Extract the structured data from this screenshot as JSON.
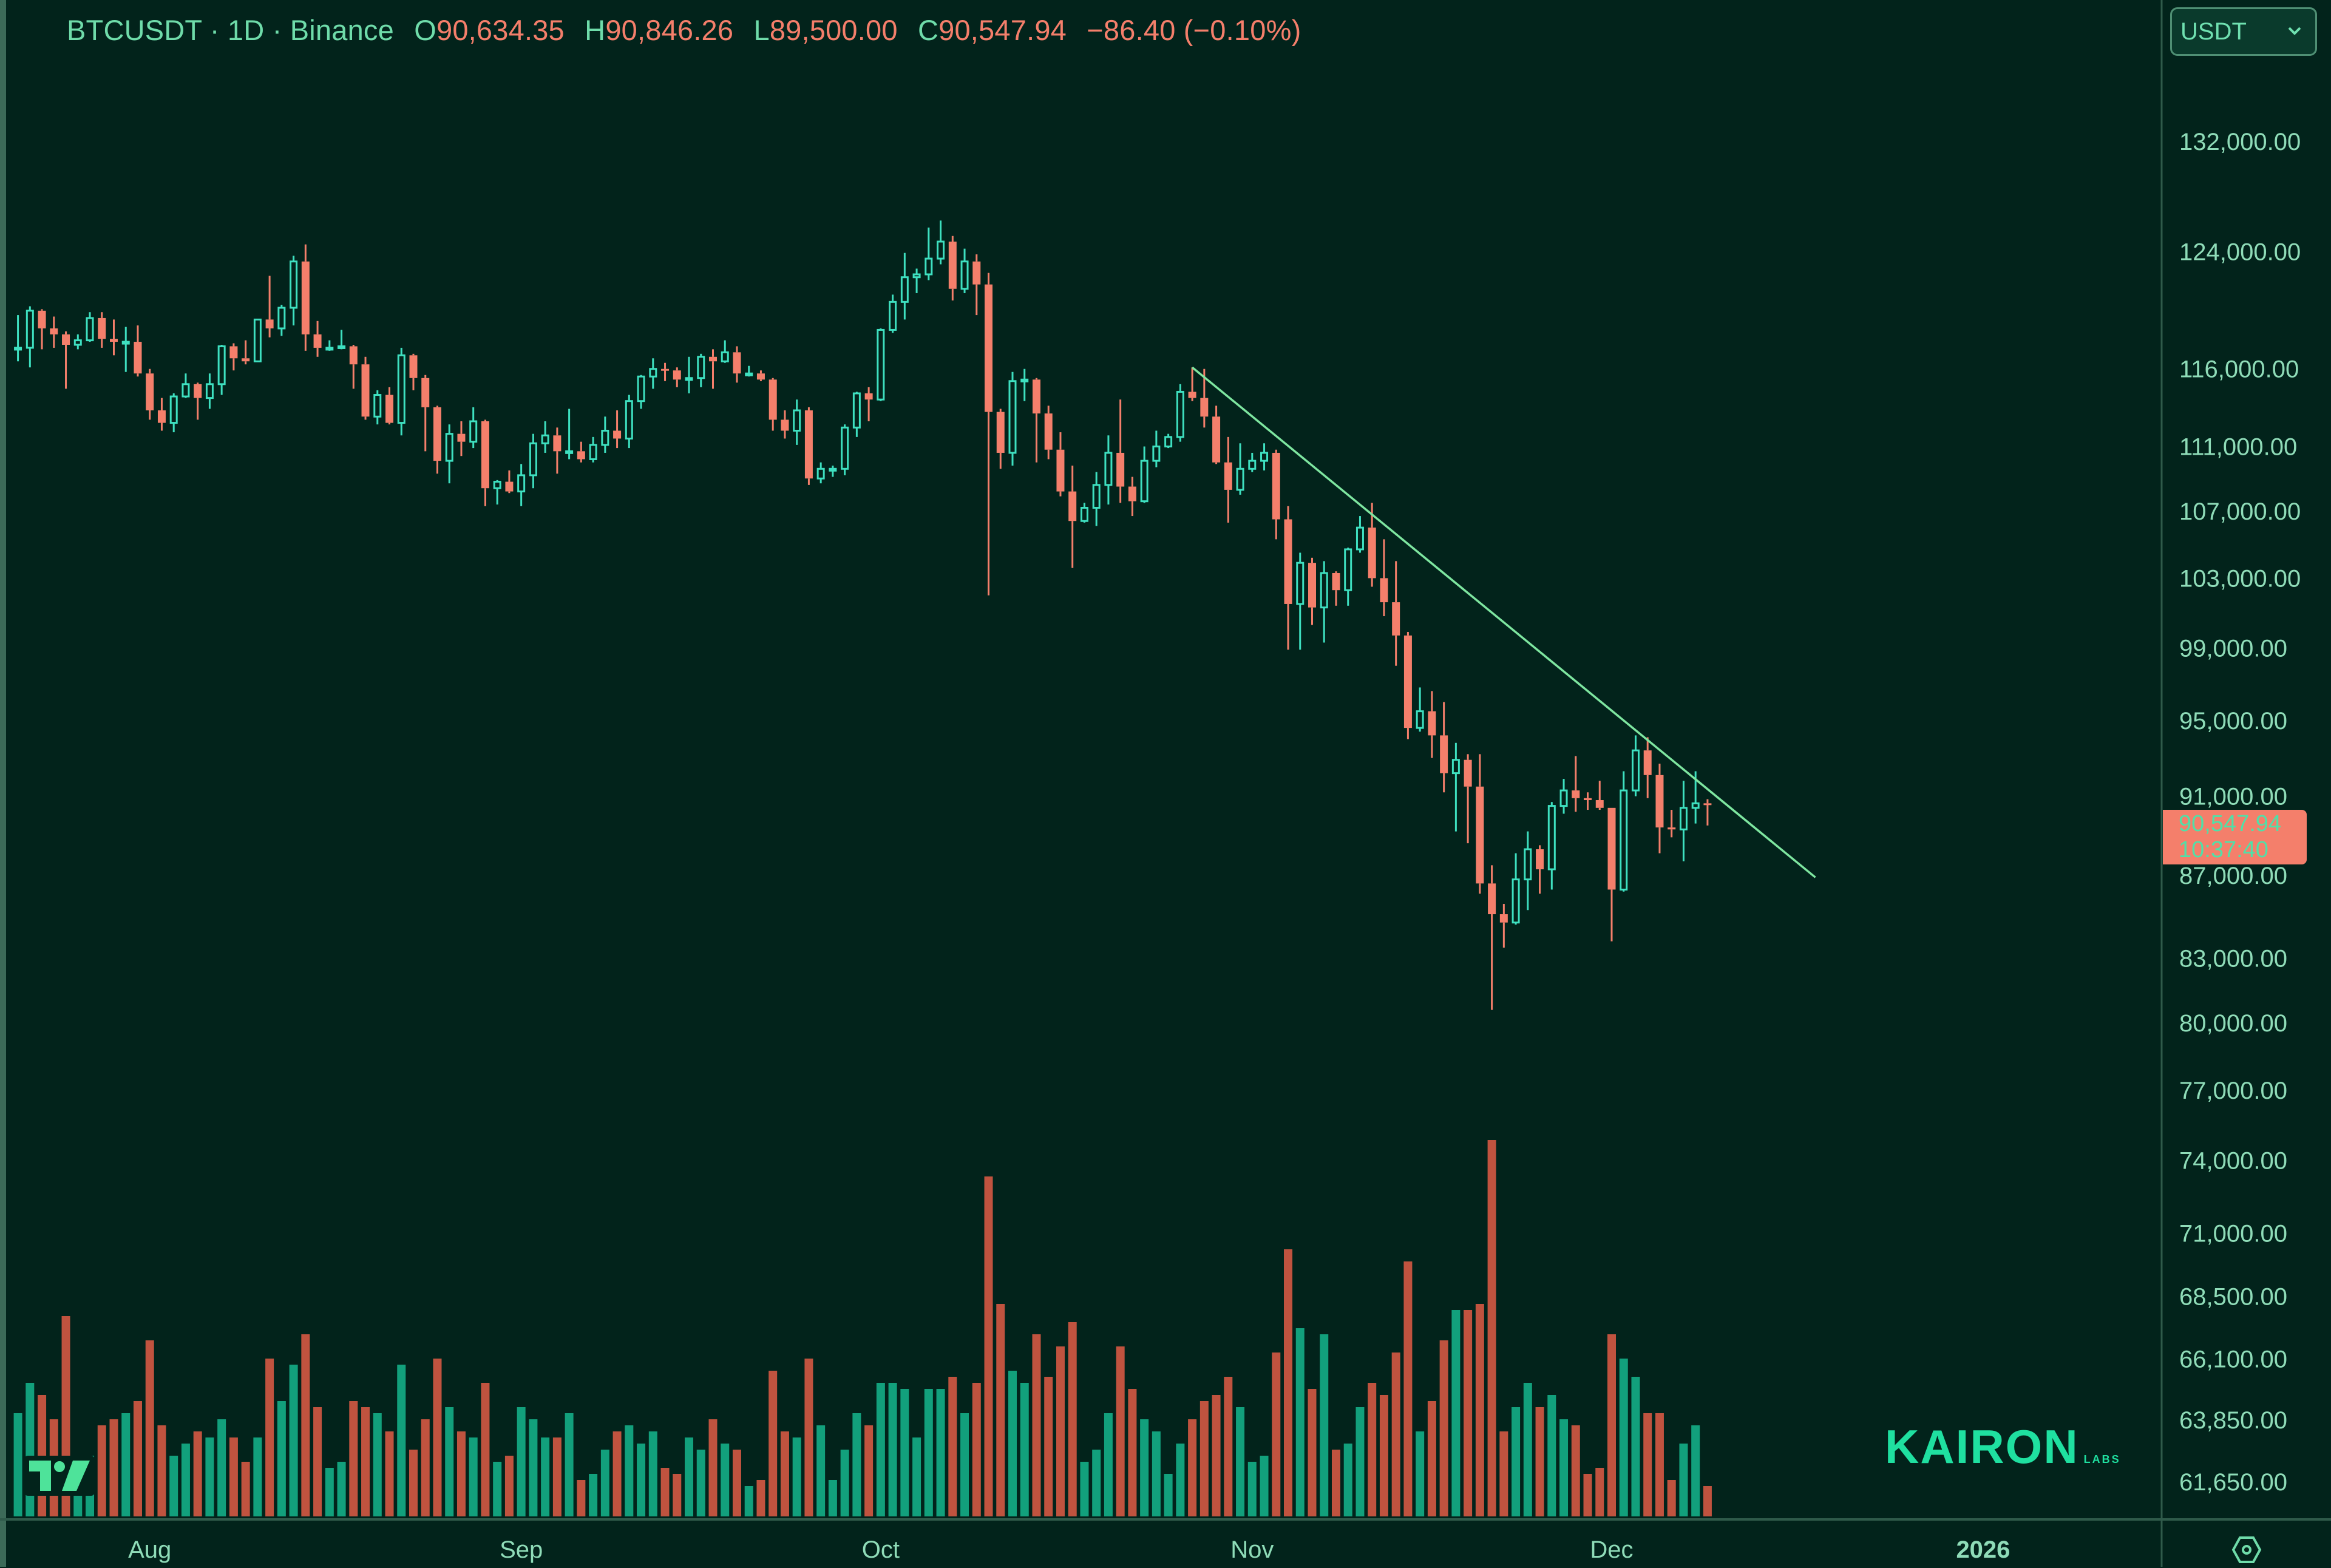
{
  "header": {
    "symbol_line": "BTCUSDT · 1D · Binance",
    "open_label": "O",
    "open": "90,634.35",
    "high_label": "H",
    "high": "90,846.26",
    "low_label": "L",
    "low": "89,500.00",
    "close_label": "C",
    "close": "90,547.94",
    "change": "−86.40 (−0.10%)"
  },
  "currency_select": {
    "value": "USDT",
    "icon": "chevron-down-icon"
  },
  "last_price": {
    "price": "90,547.94",
    "countdown": "10:37:40"
  },
  "logo": {
    "name": "KAIRON",
    "suffix": "LABS"
  },
  "watermark": "TV",
  "settings_icon": "gear-hexagon-icon",
  "colors": {
    "background": "#02231b",
    "up": "#3ee0c0",
    "down": "#f47f6b",
    "volume_up": "#12a07c",
    "volume_down": "#c0533f",
    "trendline": "#7ee6a0",
    "axis_text": "#8fdcb8"
  },
  "chart_data": {
    "type": "candlestick",
    "y_scale": "log",
    "ylim": [
      60500,
      140000
    ],
    "price_ticks": [
      "132,000.00",
      "124,000.00",
      "116,000.00",
      "111,000.00",
      "107,000.00",
      "103,000.00",
      "99,000.00",
      "95,000.00",
      "91,000.00",
      "87,000.00",
      "83,000.00",
      "80,000.00",
      "77,000.00",
      "74,000.00",
      "71,000.00",
      "68,500.00",
      "66,100.00",
      "63,850.00",
      "61,650.00"
    ],
    "time_ticks": [
      {
        "label": "Aug",
        "date": "2025-08-01"
      },
      {
        "label": "Sep",
        "date": "2025-09-01"
      },
      {
        "label": "Oct",
        "date": "2025-10-01"
      },
      {
        "label": "Nov",
        "date": "2025-11-01"
      },
      {
        "label": "Dec",
        "date": "2025-12-01"
      },
      {
        "label": "2026",
        "date": "2026-01-01",
        "bold": true
      }
    ],
    "trendline": [
      [
        "2025-10-27",
        116100
      ],
      [
        "2025-12-18",
        86900
      ]
    ],
    "columns": [
      "date",
      "open",
      "high",
      "low",
      "close",
      "volume"
    ],
    "candles": [
      [
        "2025-07-21",
        117300,
        119600,
        116500,
        117400,
        17000
      ],
      [
        "2025-07-22",
        117400,
        120200,
        116100,
        119900,
        22000
      ],
      [
        "2025-07-23",
        119900,
        120000,
        117300,
        118700,
        20000
      ],
      [
        "2025-07-24",
        118700,
        119500,
        117400,
        118300,
        16000
      ],
      [
        "2025-07-25",
        118300,
        118500,
        114700,
        117600,
        33000
      ],
      [
        "2025-07-26",
        117600,
        118300,
        117300,
        117900,
        9000
      ],
      [
        "2025-07-27",
        117900,
        119800,
        117800,
        119400,
        10000
      ],
      [
        "2025-07-28",
        119400,
        119800,
        117400,
        118000,
        15000
      ],
      [
        "2025-07-29",
        118000,
        119300,
        116900,
        117800,
        16000
      ],
      [
        "2025-07-30",
        117800,
        118800,
        115800,
        117800,
        17000
      ],
      [
        "2025-07-31",
        117800,
        118900,
        115500,
        115700,
        19000
      ],
      [
        "2025-08-01",
        115700,
        116000,
        112700,
        113300,
        29000
      ],
      [
        "2025-08-02",
        113300,
        114100,
        112000,
        112500,
        15000
      ],
      [
        "2025-08-03",
        112500,
        114400,
        111900,
        114200,
        10000
      ],
      [
        "2025-08-04",
        114200,
        115700,
        114100,
        115000,
        12000
      ],
      [
        "2025-08-05",
        115000,
        115100,
        112700,
        114100,
        14000
      ],
      [
        "2025-08-06",
        114100,
        115700,
        113400,
        115000,
        13000
      ],
      [
        "2025-08-07",
        115000,
        117600,
        114300,
        117500,
        16000
      ],
      [
        "2025-08-08",
        117500,
        117700,
        115900,
        116700,
        13000
      ],
      [
        "2025-08-09",
        116700,
        117900,
        116300,
        116500,
        9000
      ],
      [
        "2025-08-10",
        116500,
        119300,
        116500,
        119300,
        13000
      ],
      [
        "2025-08-11",
        119300,
        122300,
        118100,
        118700,
        26000
      ],
      [
        "2025-08-12",
        118700,
        120300,
        118200,
        120100,
        19000
      ],
      [
        "2025-08-13",
        120100,
        123700,
        118900,
        123300,
        25000
      ],
      [
        "2025-08-14",
        123300,
        124500,
        117200,
        118300,
        30000
      ],
      [
        "2025-08-15",
        118300,
        119200,
        116800,
        117400,
        18000
      ],
      [
        "2025-08-16",
        117400,
        117900,
        117200,
        117400,
        8000
      ],
      [
        "2025-08-17",
        117400,
        118600,
        117300,
        117500,
        9000
      ],
      [
        "2025-08-18",
        117500,
        117600,
        114700,
        116300,
        19000
      ],
      [
        "2025-08-19",
        116300,
        116800,
        112700,
        112900,
        18000
      ],
      [
        "2025-08-20",
        112900,
        114600,
        112400,
        114300,
        17000
      ],
      [
        "2025-08-21",
        114300,
        114800,
        112400,
        112500,
        14000
      ],
      [
        "2025-08-22",
        112500,
        117400,
        111700,
        116900,
        25000
      ],
      [
        "2025-08-23",
        116900,
        117000,
        114600,
        115400,
        11000
      ],
      [
        "2025-08-24",
        115400,
        115600,
        110700,
        113500,
        16000
      ],
      [
        "2025-08-25",
        113500,
        113600,
        109300,
        110100,
        26000
      ],
      [
        "2025-08-26",
        110100,
        112400,
        108700,
        111800,
        18000
      ],
      [
        "2025-08-27",
        111800,
        112600,
        110400,
        111300,
        14000
      ],
      [
        "2025-08-28",
        111300,
        113500,
        110900,
        112600,
        13000
      ],
      [
        "2025-08-29",
        112600,
        112700,
        107300,
        108400,
        22000
      ],
      [
        "2025-08-30",
        108400,
        108900,
        107400,
        108800,
        9000
      ],
      [
        "2025-08-31",
        108800,
        109500,
        108100,
        108200,
        10000
      ],
      [
        "2025-09-01",
        108200,
        109900,
        107300,
        109200,
        18000
      ],
      [
        "2025-09-02",
        109200,
        111800,
        108400,
        111200,
        16000
      ],
      [
        "2025-09-03",
        111200,
        112600,
        110600,
        111700,
        13000
      ],
      [
        "2025-09-04",
        111700,
        112200,
        109300,
        110700,
        13000
      ],
      [
        "2025-09-05",
        110700,
        113400,
        110200,
        110700,
        17000
      ],
      [
        "2025-09-06",
        110700,
        111300,
        110000,
        110200,
        6000
      ],
      [
        "2025-09-07",
        110200,
        111600,
        110000,
        111100,
        7000
      ],
      [
        "2025-09-08",
        111100,
        112900,
        110600,
        112000,
        11000
      ],
      [
        "2025-09-09",
        112000,
        113300,
        110900,
        111500,
        14000
      ],
      [
        "2025-09-10",
        111500,
        114300,
        110900,
        113900,
        15000
      ],
      [
        "2025-09-11",
        113900,
        115600,
        113400,
        115500,
        12000
      ],
      [
        "2025-09-12",
        115500,
        116700,
        114700,
        116000,
        14000
      ],
      [
        "2025-09-13",
        116000,
        116400,
        115200,
        115900,
        8000
      ],
      [
        "2025-09-14",
        115900,
        116100,
        114800,
        115300,
        7000
      ],
      [
        "2025-09-15",
        115300,
        116800,
        114400,
        115400,
        13000
      ],
      [
        "2025-09-16",
        115400,
        117000,
        114800,
        116800,
        11000
      ],
      [
        "2025-09-17",
        116800,
        117300,
        114700,
        116500,
        16000
      ],
      [
        "2025-09-18",
        116500,
        117900,
        116400,
        117100,
        12000
      ],
      [
        "2025-09-19",
        117100,
        117500,
        115100,
        115700,
        11000
      ],
      [
        "2025-09-20",
        115700,
        116200,
        115500,
        115700,
        5000
      ],
      [
        "2025-09-21",
        115700,
        115900,
        115200,
        115300,
        6000
      ],
      [
        "2025-09-22",
        115300,
        115400,
        112000,
        112700,
        24000
      ],
      [
        "2025-09-23",
        112700,
        113300,
        111500,
        112000,
        14000
      ],
      [
        "2025-09-24",
        112000,
        114000,
        111100,
        113300,
        13000
      ],
      [
        "2025-09-25",
        113300,
        113500,
        108600,
        109000,
        26000
      ],
      [
        "2025-09-26",
        109000,
        110000,
        108700,
        109600,
        15000
      ],
      [
        "2025-09-27",
        109600,
        109800,
        109100,
        109600,
        6000
      ],
      [
        "2025-09-28",
        109600,
        112400,
        109200,
        112200,
        11000
      ],
      [
        "2025-09-29",
        112200,
        114500,
        111600,
        114400,
        17000
      ],
      [
        "2025-09-30",
        114400,
        114800,
        112600,
        114000,
        15000
      ],
      [
        "2025-10-01",
        114000,
        118700,
        113900,
        118600,
        22000
      ],
      [
        "2025-10-02",
        118600,
        121000,
        118400,
        120500,
        22000
      ],
      [
        "2025-10-03",
        120500,
        123900,
        119300,
        122200,
        21000
      ],
      [
        "2025-10-04",
        122200,
        122800,
        121100,
        122400,
        13000
      ],
      [
        "2025-10-05",
        122400,
        125700,
        122000,
        123500,
        21000
      ],
      [
        "2025-10-06",
        123500,
        126200,
        123100,
        124700,
        21000
      ],
      [
        "2025-10-07",
        124700,
        125100,
        120600,
        121400,
        23000
      ],
      [
        "2025-10-08",
        121400,
        124200,
        121100,
        123300,
        17000
      ],
      [
        "2025-10-09",
        123300,
        123800,
        119600,
        121700,
        22000
      ],
      [
        "2025-10-10",
        121700,
        122500,
        102000,
        113200,
        56000
      ],
      [
        "2025-10-11",
        113200,
        113400,
        109600,
        110600,
        35000
      ],
      [
        "2025-10-12",
        110600,
        115800,
        109800,
        115200,
        24000
      ],
      [
        "2025-10-13",
        115200,
        116000,
        113900,
        115300,
        22000
      ],
      [
        "2025-10-14",
        115300,
        115400,
        110000,
        113100,
        30000
      ],
      [
        "2025-10-15",
        113100,
        113600,
        110200,
        110800,
        23000
      ],
      [
        "2025-10-16",
        110800,
        111900,
        107900,
        108200,
        28000
      ],
      [
        "2025-10-17",
        108200,
        109800,
        103600,
        106400,
        32000
      ],
      [
        "2025-10-18",
        106400,
        107500,
        106300,
        107200,
        9000
      ],
      [
        "2025-10-19",
        107200,
        109400,
        106100,
        108600,
        11000
      ],
      [
        "2025-10-20",
        108600,
        111700,
        107400,
        110600,
        17000
      ],
      [
        "2025-10-21",
        110600,
        114000,
        107500,
        108500,
        28000
      ],
      [
        "2025-10-22",
        108500,
        109100,
        106700,
        107600,
        21000
      ],
      [
        "2025-10-23",
        107600,
        111000,
        107500,
        110100,
        16000
      ],
      [
        "2025-10-24",
        110100,
        112000,
        109700,
        111000,
        14000
      ],
      [
        "2025-10-25",
        111000,
        111800,
        110900,
        111600,
        7000
      ],
      [
        "2025-10-26",
        111600,
        115000,
        111300,
        114500,
        12000
      ],
      [
        "2025-10-27",
        114500,
        116100,
        113900,
        114100,
        16000
      ],
      [
        "2025-10-28",
        114100,
        116000,
        112200,
        112900,
        19000
      ],
      [
        "2025-10-29",
        112900,
        113600,
        109900,
        110000,
        20000
      ],
      [
        "2025-10-30",
        110000,
        111600,
        106300,
        108300,
        23000
      ],
      [
        "2025-10-31",
        108300,
        111200,
        108000,
        109600,
        18000
      ],
      [
        "2025-11-01",
        109600,
        110600,
        109400,
        110100,
        9000
      ],
      [
        "2025-11-02",
        110100,
        111200,
        109500,
        110600,
        10000
      ],
      [
        "2025-11-03",
        110600,
        110800,
        105300,
        106500,
        27000
      ],
      [
        "2025-11-04",
        106500,
        107300,
        98900,
        101500,
        44000
      ],
      [
        "2025-11-05",
        101500,
        104500,
        98900,
        103900,
        31000
      ],
      [
        "2025-11-06",
        103900,
        104200,
        100300,
        101300,
        21000
      ],
      [
        "2025-11-07",
        101300,
        104000,
        99300,
        103300,
        30000
      ],
      [
        "2025-11-08",
        103300,
        103400,
        101400,
        102300,
        11000
      ],
      [
        "2025-11-09",
        102300,
        104800,
        101400,
        104700,
        12000
      ],
      [
        "2025-11-10",
        104700,
        106700,
        104500,
        106000,
        18000
      ],
      [
        "2025-11-11",
        106000,
        107500,
        102500,
        103000,
        22000
      ],
      [
        "2025-11-12",
        103000,
        105300,
        100800,
        101600,
        20000
      ],
      [
        "2025-11-13",
        101600,
        104000,
        98000,
        99700,
        27000
      ],
      [
        "2025-11-14",
        99700,
        99900,
        94000,
        94600,
        42000
      ],
      [
        "2025-11-15",
        94600,
        96800,
        94400,
        95500,
        14000
      ],
      [
        "2025-11-16",
        95500,
        96600,
        93000,
        94200,
        19000
      ],
      [
        "2025-11-17",
        94200,
        96000,
        91200,
        92200,
        29000
      ],
      [
        "2025-11-18",
        92200,
        93800,
        89200,
        92900,
        34000
      ],
      [
        "2025-11-19",
        92900,
        93200,
        88600,
        91500,
        34000
      ],
      [
        "2025-11-20",
        91500,
        93200,
        86100,
        86600,
        35000
      ],
      [
        "2025-11-21",
        86600,
        87500,
        80600,
        85100,
        62000
      ],
      [
        "2025-11-22",
        85100,
        85600,
        83500,
        84700,
        14000
      ],
      [
        "2025-11-23",
        84700,
        88100,
        84600,
        86800,
        18000
      ],
      [
        "2025-11-24",
        86800,
        89200,
        85300,
        88300,
        22000
      ],
      [
        "2025-11-25",
        88300,
        88500,
        86100,
        87300,
        18000
      ],
      [
        "2025-11-26",
        87300,
        90700,
        86300,
        90500,
        20000
      ],
      [
        "2025-11-27",
        90500,
        91900,
        90100,
        91300,
        16000
      ],
      [
        "2025-11-28",
        91300,
        93100,
        90200,
        90900,
        15000
      ],
      [
        "2025-11-29",
        90900,
        91200,
        90300,
        90800,
        7000
      ],
      [
        "2025-11-30",
        90800,
        91800,
        90300,
        90400,
        8000
      ],
      [
        "2025-12-01",
        90400,
        90400,
        83800,
        86300,
        30000
      ],
      [
        "2025-12-02",
        86300,
        92300,
        86200,
        91300,
        26000
      ],
      [
        "2025-12-03",
        91300,
        94200,
        91000,
        93400,
        23000
      ],
      [
        "2025-12-04",
        93400,
        94100,
        90900,
        92100,
        17000
      ],
      [
        "2025-12-05",
        92100,
        92700,
        88100,
        89400,
        17000
      ],
      [
        "2025-12-06",
        89400,
        90300,
        88900,
        89300,
        6000
      ],
      [
        "2025-12-07",
        89300,
        91800,
        87700,
        90400,
        12000
      ],
      [
        "2025-12-08",
        90400,
        92300,
        89600,
        90634.35,
        15000
      ],
      [
        "2025-12-09",
        90634.35,
        90846.26,
        89500.0,
        90547.94,
        5000
      ]
    ]
  }
}
